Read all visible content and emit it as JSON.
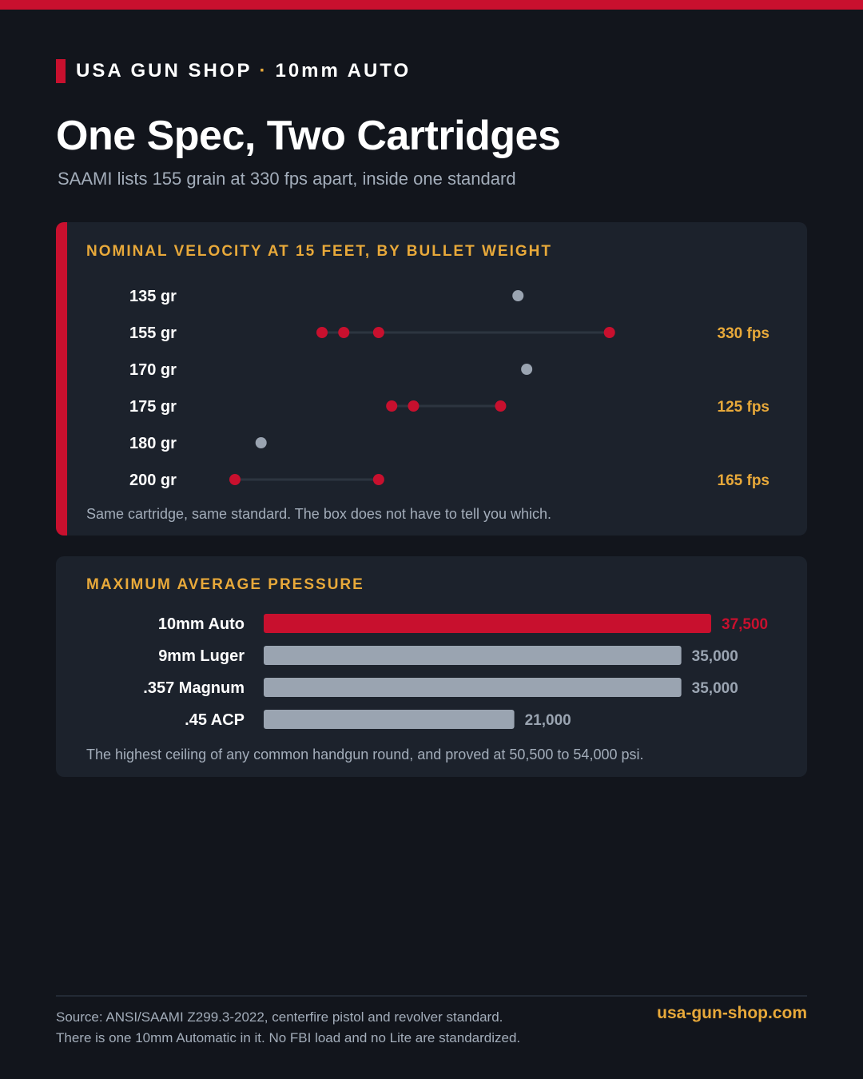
{
  "brand": {
    "name": "USA GUN SHOP",
    "separator": "·",
    "caliber": "10mm AUTO"
  },
  "header": {
    "title": "One Spec, Two Cartridges",
    "subtitle": "SAAMI lists 155 grain at 330 fps apart, inside one standard"
  },
  "colors": {
    "accent_red": "#c8102e",
    "gold": "#e8a93a",
    "neutral_gray": "#9aa4b1",
    "background": "#12151c",
    "panel": "#1c222c"
  },
  "velocity_panel": {
    "heading": "NOMINAL VELOCITY AT 15 FEET, BY BULLET WEIGHT",
    "note": "Same cartridge, same standard. The box does not have to tell you which."
  },
  "pressure_panel": {
    "heading": "MAXIMUM AVERAGE PRESSURE",
    "note": "The highest ceiling of any common handgun round, and proved at 50,500 to 54,000 psi."
  },
  "chart_data": [
    {
      "type": "scatter",
      "title": "NOMINAL VELOCITY AT 15 FEET, BY BULLET WEIGHT",
      "xlabel": "",
      "ylabel": "",
      "xlim": [
        1000,
        1500
      ],
      "grid": false,
      "categories": [
        "135 gr",
        "155 gr",
        "170 gr",
        "175 gr",
        "180 gr",
        "200 gr"
      ],
      "rows": [
        {
          "label": "135 gr",
          "values": [
            1325
          ],
          "spread": "",
          "highlight": false
        },
        {
          "label": "155 gr",
          "values": [
            1100,
            1125,
            1165,
            1430
          ],
          "spread": "330 fps",
          "highlight": true
        },
        {
          "label": "170 gr",
          "values": [
            1335
          ],
          "spread": "",
          "highlight": false
        },
        {
          "label": "175 gr",
          "values": [
            1180,
            1205,
            1305
          ],
          "spread": "125 fps",
          "highlight": true
        },
        {
          "label": "180 gr",
          "values": [
            1030
          ],
          "spread": "",
          "highlight": false
        },
        {
          "label": "200 gr",
          "values": [
            1000,
            1165
          ],
          "spread": "165 fps",
          "highlight": true
        }
      ]
    },
    {
      "type": "bar",
      "title": "MAXIMUM AVERAGE PRESSURE",
      "xlabel": "",
      "ylabel": "",
      "xlim": [
        0,
        37500
      ],
      "categories": [
        "10mm Auto",
        "9mm Luger",
        ".357 Magnum",
        ".45 ACP"
      ],
      "values": [
        37500,
        35000,
        35000,
        21000
      ],
      "value_labels": [
        "37,500",
        "35,000",
        "35,000",
        "21,000"
      ],
      "highlight": [
        true,
        false,
        false,
        false
      ]
    }
  ],
  "footer": {
    "source_line1": "Source: ANSI/SAAMI Z299.3-2022, centerfire pistol and revolver standard.",
    "source_line2": "There is one 10mm Automatic in it. No FBI load and no Lite are standardized.",
    "url": "usa-gun-shop.com"
  }
}
